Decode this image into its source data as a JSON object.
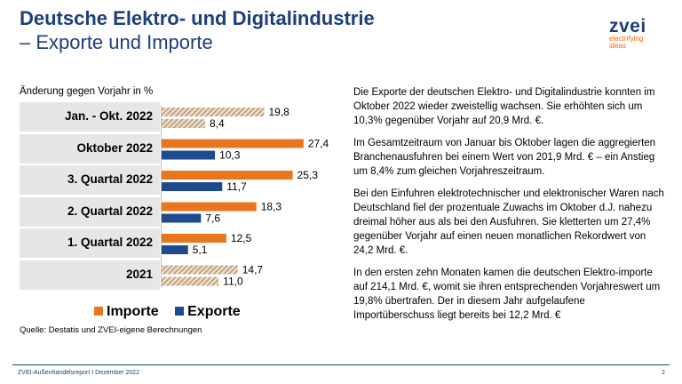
{
  "header": {
    "title_line1": "Deutsche Elektro- und Digitalindustrie",
    "title_line2": "– Exporte und Importe"
  },
  "logo": {
    "word": "zvei",
    "tagline_1": "electrifying",
    "tagline_2": "ideas"
  },
  "chart_title": "Änderung gegen Vorjahr in %",
  "chart_data": {
    "type": "bar",
    "orientation": "horizontal",
    "categories": [
      "Jan. - Okt. 2022",
      "Oktober 2022",
      "3. Quartal 2022",
      "2. Quartal 2022",
      "1. Quartal 2022",
      "2021"
    ],
    "series": [
      {
        "name": "Importe",
        "values": [
          19.8,
          27.4,
          25.3,
          18.3,
          12.5,
          14.7
        ],
        "value_labels": [
          "19,8",
          "27,4",
          "25,3",
          "18,3",
          "12,5",
          "14,7"
        ]
      },
      {
        "name": "Exporte",
        "values": [
          8.4,
          10.3,
          11.7,
          7.6,
          5.1,
          11.0
        ],
        "value_labels": [
          "8,4",
          "10,3",
          "11,7",
          "7,6",
          "5,1",
          "11,0"
        ]
      }
    ],
    "title": "Änderung gegen Vorjahr in %",
    "xlim": [
      0,
      30
    ],
    "legend": "bottom",
    "grid": false,
    "colors": {
      "importe": "#e8761e",
      "exporte": "#1d4b8e",
      "hatched_light": "#f4ddc3",
      "hatched_dark": "#b39c86"
    },
    "hatched_categories": [
      "Jan. - Okt. 2022",
      "2021"
    ]
  },
  "legend": {
    "importe": "Importe",
    "exporte": "Exporte"
  },
  "source": "Quelle: Destatis und ZVEI-eigene Berechnungen",
  "text": {
    "p1": "Die Exporte der deutschen Elektro- und Digitalindustrie konnten im Oktober 2022 wieder zweistellig wachsen. Sie erhöhten sich um 10,3% gegenüber Vorjahr auf 20,9 Mrd. €.",
    "p2": "Im Gesamtzeitraum von Januar bis Oktober lagen die aggregierten Branchenausfuhren bei einem Wert von 201,9 Mrd. € – ein Anstieg um 8,4% zum gleichen Vorjahreszeitraum.",
    "p3": "Bei den Einfuhren elektrotechnischer und elektronischer Waren nach Deutschland fiel der prozentuale Zuwachs im Oktober d.J. nahezu dreimal höher aus als bei den Ausfuhren. Sie kletterten um 27,4% gegenüber Vorjahr auf einen neuen monatlichen Rekordwert von 24,2 Mrd. €.",
    "p4": "In den ersten zehn Monaten kamen die deutschen Elektro-importe auf 214,1 Mrd. €, womit sie ihren entsprechenden Vorjahreswert um 19,8% übertrafen. Der in diesem Jahr aufgelaufene Importüberschuss liegt bereits bei 12,2 Mrd. €"
  },
  "footer": {
    "left": "ZVEI-Außenhandelsreport I Dezember 2022",
    "page": "2"
  }
}
